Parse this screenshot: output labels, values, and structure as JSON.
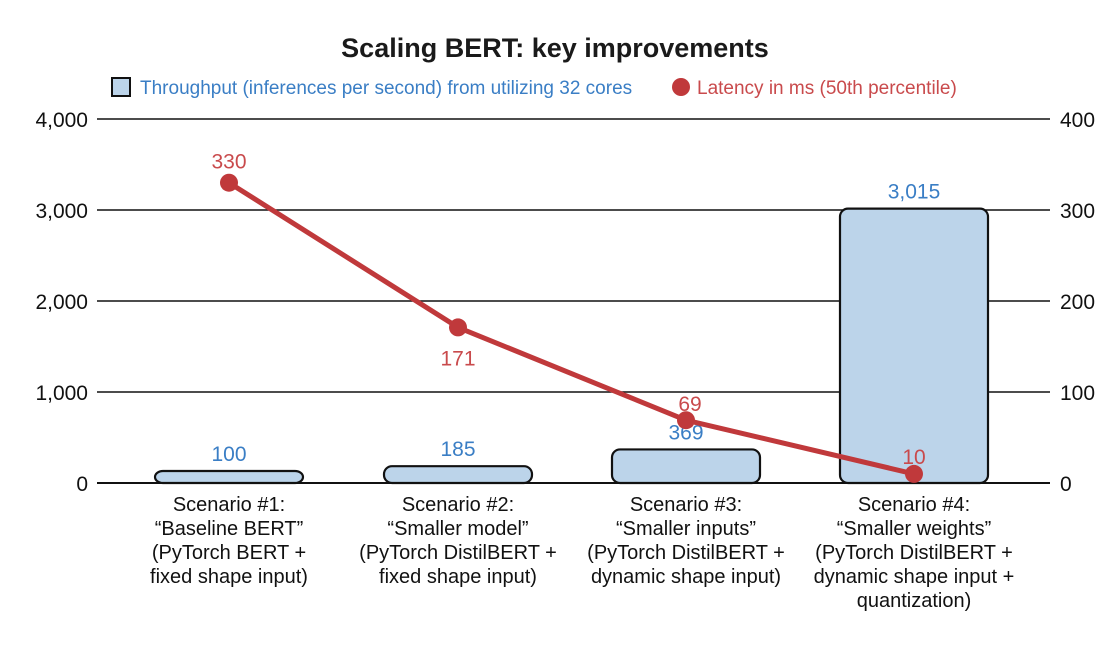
{
  "chart_data": {
    "type": "bar",
    "title": "Scaling BERT: key improvements",
    "categories": [
      [
        "Scenario #1:",
        "“Baseline BERT”",
        "(PyTorch BERT +",
        "fixed shape input)"
      ],
      [
        "Scenario #2:",
        "“Smaller model”",
        "(PyTorch DistilBERT +",
        "fixed shape input)"
      ],
      [
        "Scenario #3:",
        "“Smaller inputs”",
        "(PyTorch DistilBERT +",
        "dynamic shape input)"
      ],
      [
        "Scenario #4:",
        "“Smaller weights”",
        "(PyTorch DistilBERT +",
        "dynamic shape input +",
        "quantization)"
      ]
    ],
    "series": [
      {
        "name": "Throughput (inferences per second) from utilizing 32 cores",
        "type": "bar",
        "axis": "left",
        "values": [
          100,
          185,
          369,
          3015
        ],
        "labels": [
          "100",
          "185",
          "369",
          "3,015"
        ],
        "color": "#bcd4ea",
        "label_color": "#3a7ec5"
      },
      {
        "name": "Latency in ms (50th percentile)",
        "type": "line",
        "axis": "right",
        "values": [
          330,
          171,
          69,
          10
        ],
        "labels": [
          "330",
          "171",
          "69",
          "10"
        ],
        "color": "#c0393b",
        "label_color": "#c94a4c"
      }
    ],
    "y_left": {
      "ylim": [
        0,
        4000
      ],
      "ticks": [
        0,
        1000,
        2000,
        3000,
        4000
      ],
      "tick_labels": [
        "0",
        "1,000",
        "2,000",
        "3,000",
        "4,000"
      ]
    },
    "y_right": {
      "ylim": [
        0,
        400
      ],
      "ticks": [
        0,
        100,
        200,
        300,
        400
      ],
      "tick_labels": [
        "0",
        "100",
        "200",
        "300",
        "400"
      ]
    },
    "grid": true,
    "legend_position": "top"
  }
}
